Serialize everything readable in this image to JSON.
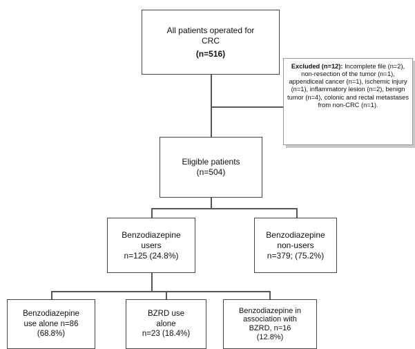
{
  "nodes": {
    "all_patients": {
      "line1": "All patients operated for",
      "line2": "CRC",
      "count": "(n=516)"
    },
    "excluded": {
      "lead": "Excluded (n=12):",
      "text": " Incomplete file (n=2), non-resection of the tumor (n=1), appendiceal cancer (n=1), ischemic injury (n=1), inflammatory lesion (n=2), benign tumor (n=4), colonic and rectal metastases from non-CRC (n=1)."
    },
    "eligible": {
      "line1": "Eligible patients",
      "line2": "(n=504)"
    },
    "users": {
      "line1": "Benzodiazepine",
      "line2": "users",
      "line3": "n=125 (24.8%)"
    },
    "non_users": {
      "line1": "Benzodiazepine",
      "line2": "non-users",
      "line3": "n=379; (75.2%)"
    },
    "alone": {
      "line1": "Benzodiazepine",
      "line2": "use alone n=86",
      "line3": "(68.8%)"
    },
    "bzrd": {
      "line1": "BZRD use",
      "line2": "alone",
      "line3": "n=23 (18.4%)"
    },
    "association": {
      "line1": "Benzodiazepine in",
      "line2": "association with",
      "line3": "BZRD, n=16",
      "line4": "(12.8%)"
    }
  }
}
